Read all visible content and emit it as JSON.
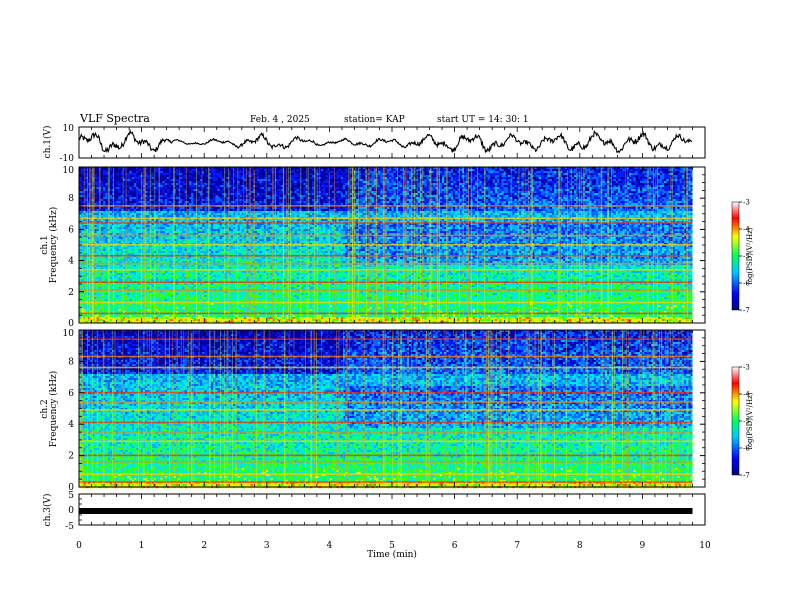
{
  "header": {
    "title": "VLF Spectra",
    "date": "Feb. 4 , 2025",
    "station": "station= KAP",
    "start_ut": "start UT =  14: 30: 1"
  },
  "chart_data": [
    {
      "type": "line",
      "panel": "ch1_waveform",
      "ylabel": "ch.1(V)",
      "ylim": [
        -10,
        10
      ],
      "yticks": [
        "10",
        "-10"
      ],
      "x_minutes": [
        0,
        0.5,
        1.0,
        1.4,
        1.6,
        2.0,
        2.5,
        3.0,
        3.5,
        4.0,
        4.5,
        5.0,
        5.5,
        6.0,
        6.5,
        7.0,
        7.5,
        8.0,
        8.5,
        9.0,
        9.5,
        9.8
      ],
      "envelope_amplitude_v": [
        7,
        8,
        7,
        5,
        1.5,
        2,
        3,
        6,
        4,
        2,
        3,
        3,
        5,
        6,
        7,
        5,
        6,
        7,
        6,
        7,
        6,
        5
      ],
      "color": "#000000"
    },
    {
      "type": "heatmap",
      "panel": "ch1_spectrogram",
      "ylabel": "ch.1\nFrequency  (kHz)",
      "ylim": [
        0,
        10
      ],
      "yticks": [
        "0",
        "2",
        "4",
        "6",
        "8",
        "10"
      ],
      "data_extent_minutes": [
        0,
        9.8
      ],
      "emission_lines_khz": [
        0.6,
        1.3,
        2.1,
        2.6,
        3.4,
        3.8,
        4.3,
        5.0,
        5.6,
        6.4,
        6.7,
        7.5
      ],
      "colorbar": {
        "label": "log(PSD)(V²/Hz)",
        "range": [
          -7,
          -3
        ],
        "ticks": [
          "-3",
          "-4",
          "-5",
          "-6",
          "-7"
        ],
        "colors": [
          "#000080",
          "#0000ff",
          "#00c8ff",
          "#00ff66",
          "#ffff00",
          "#ff0000",
          "#ffffff"
        ]
      }
    },
    {
      "type": "heatmap",
      "panel": "ch2_spectrogram",
      "ylabel": "ch.2\nFrequency  (kHz)",
      "ylim": [
        0,
        10
      ],
      "yticks": [
        "0",
        "2",
        "4",
        "6",
        "8",
        "10"
      ],
      "data_extent_minutes": [
        0,
        9.8
      ],
      "emission_lines_khz": [
        0.3,
        0.8,
        1.6,
        2.0,
        2.9,
        3.5,
        4.1,
        4.9,
        5.4,
        6.0,
        7.6,
        8.3,
        9.4
      ],
      "colorbar": {
        "label": "log(PSD)(V²/Hz)",
        "range": [
          -7,
          -3
        ],
        "ticks": [
          "-3",
          "-4",
          "-5",
          "-6",
          "-7"
        ],
        "colors": [
          "#000080",
          "#0000ff",
          "#00c8ff",
          "#00ff66",
          "#ffff00",
          "#ff0000",
          "#ffffff"
        ]
      }
    },
    {
      "type": "line",
      "panel": "ch3_waveform",
      "ylabel": "ch.3(V)",
      "ylim": [
        -5,
        5
      ],
      "yticks": [
        "5",
        "0",
        "-5"
      ],
      "x_minutes": [
        0,
        9.8
      ],
      "y_volts": [
        -0.6,
        -0.6
      ],
      "color": "#000000"
    }
  ],
  "xaxis": {
    "label": "Time  (min)",
    "range": [
      0,
      10
    ],
    "ticks": [
      "0",
      "1",
      "2",
      "3",
      "4",
      "5",
      "6",
      "7",
      "8",
      "9",
      "10"
    ]
  }
}
